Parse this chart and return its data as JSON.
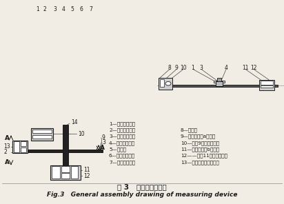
{
  "bg_color": "#f2ede4",
  "title_chinese": "图 3   测试装置总装图",
  "title_english": "Fig.3   General assembly drawing of measuring device",
  "legend_left": [
    "1—切向负载梁；",
    "2—切向传动杆；",
    "3—深沟球轴承；",
    "4—径向传动杆；",
    "5—螺钉；",
    "6—球磨机通体；",
    "7—球磨机行板；"
  ],
  "legend_right": [
    "8—螺钉；",
    "9—径向负载梁a部分；",
    "10—部件9上的应变片；",
    "11—径向负载梁b部分；",
    "12——部件11上的应变片；",
    "13—切向负载梁应变片；"
  ],
  "font_color": "#1a1a1a"
}
